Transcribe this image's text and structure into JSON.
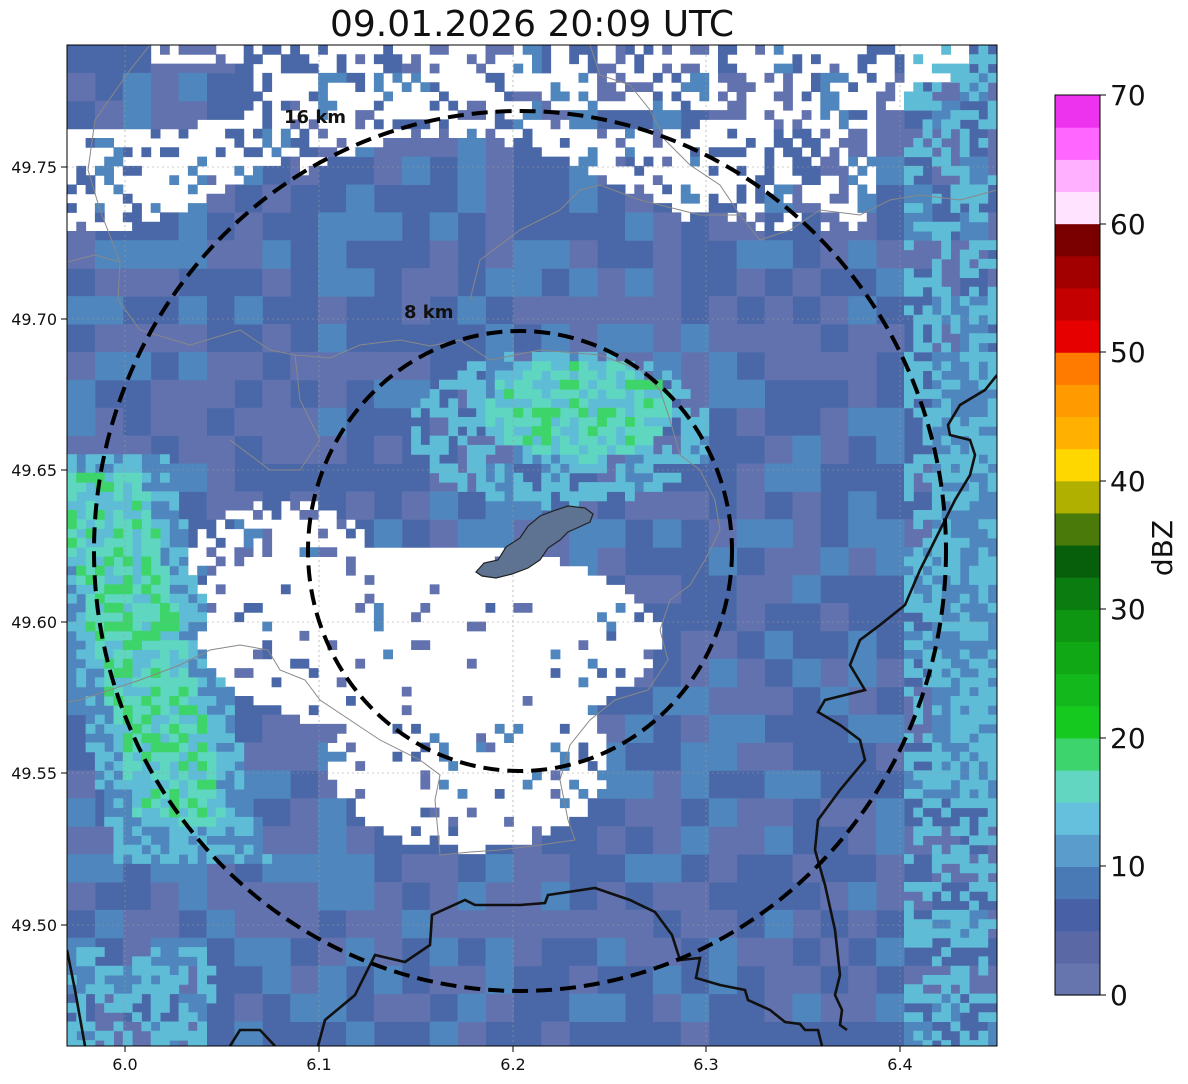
{
  "title": "09.01.2026 20:09 UTC",
  "map": {
    "lon_range": [
      5.97,
      6.45
    ],
    "lat_range": [
      49.46,
      49.79
    ],
    "x_ticks": [
      "6.0",
      "6.1",
      "6.2",
      "6.3",
      "6.4"
    ],
    "y_ticks": [
      "49.50",
      "49.55",
      "49.60",
      "49.65",
      "49.70",
      "49.75"
    ],
    "rings": [
      {
        "label": "8 km",
        "radius_km": 8
      },
      {
        "label": "16 km",
        "radius_km": 16
      }
    ],
    "center": {
      "lon": 6.204,
      "lat": 49.623
    },
    "radar_echo_colors": {
      "very_light": "#6272ae",
      "light": "#4a68a8",
      "moderate": "#4f86bd",
      "teal": "#5fbcd6",
      "aqua": "#5fd6c0",
      "green": "#3dd46a"
    },
    "border_color": "#111111",
    "admin_boundary_color": "#888888"
  },
  "colorbar": {
    "label": "dBZ",
    "min": 0,
    "max": 70,
    "ticks": [
      "0",
      "10",
      "20",
      "30",
      "40",
      "50",
      "60",
      "70"
    ],
    "bands": [
      "#6675ad",
      "#5a68a6",
      "#4760a6",
      "#4a7ab6",
      "#5a9ccb",
      "#64c0dc",
      "#62d6c0",
      "#3dd46e",
      "#16c91e",
      "#13b91c",
      "#10a814",
      "#0e9612",
      "#0b7c10",
      "#075f0c",
      "#4a7a0a",
      "#b0b000",
      "#ffd700",
      "#ffb000",
      "#ff9b00",
      "#ff7b00",
      "#e60000",
      "#c50000",
      "#a20000",
      "#7a0000",
      "#ffe3ff",
      "#ffb0ff",
      "#ff66ff",
      "#ee33ee"
    ]
  }
}
